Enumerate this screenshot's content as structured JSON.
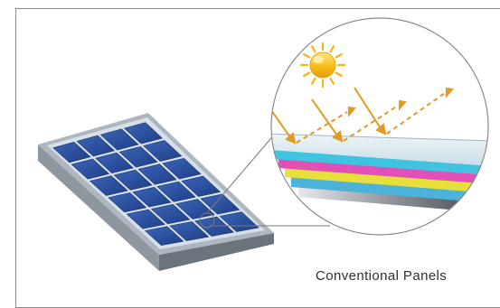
{
  "caption": "Conventional Panels",
  "colors": {
    "frame_border": "#8d8d8d",
    "panel_frame": "#9ea7ae",
    "panel_backsheet": "#d5dde6",
    "cell": "#2a4f9f",
    "sun": "#f2b512",
    "ray": "#e39a24",
    "layer_glass": "#dde9ef",
    "layer_cyan": "#3fc3df",
    "layer_magenta": "#e24fb6",
    "layer_yellow": "#e8e03a",
    "layer_blue": "#4bb3d9",
    "layer_metal": "#7a7f84"
  },
  "icons": [
    "sun-icon",
    "incident-ray-icon",
    "reflected-ray-icon"
  ]
}
